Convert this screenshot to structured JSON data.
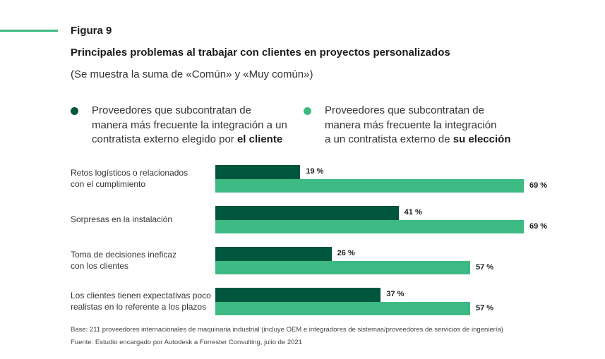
{
  "colors": {
    "accent": "#3dba83",
    "series_dark": "#00573d",
    "series_light": "#3dba83"
  },
  "figure_label": "Figura 9",
  "chart_data": {
    "type": "bar",
    "orientation": "horizontal",
    "title": "Principales problemas al trabajar con clientes en proyectos personalizados",
    "subtitle": "(Se muestra la suma de «Común» y «Muy común»)",
    "categories": [
      [
        "Retos logísticos o relacionados",
        "con el cumplimiento"
      ],
      [
        "Sorpresas en la instalación"
      ],
      [
        "Toma de decisiones ineficaz",
        "con los clientes"
      ],
      [
        "Los clientes tienen expectativas poco",
        "realistas en lo referente a los plazos"
      ]
    ],
    "series": [
      {
        "name": "Proveedores que subcontratan de manera más frecuente la integración a un contratista externo elegido por el cliente",
        "legend_lines": [
          "Proveedores que subcontratan de",
          "manera más frecuente la integración a un",
          "contratista externo elegido por "
        ],
        "legend_bold": "el cliente",
        "color": "#00573d",
        "values": [
          19,
          41,
          26,
          37
        ],
        "labels": [
          "19 %",
          "41 %",
          "26 %",
          "37 %"
        ]
      },
      {
        "name": "Proveedores que subcontratan de manera más frecuente la integración a un contratista externo de su elección",
        "legend_lines": [
          "Proveedores que subcontratan de",
          "manera más frecuente la integración",
          "a un contratista externo de "
        ],
        "legend_bold": "su elección",
        "color": "#3dba83",
        "values": [
          69,
          69,
          57,
          57
        ],
        "labels": [
          "69 %",
          "69 %",
          "57 %",
          "57 %"
        ]
      }
    ],
    "xlim": [
      0,
      100
    ],
    "unit": "%",
    "grid": false,
    "legend_position": "top"
  },
  "footnotes": [
    "Base: 211 proveedores internacionales de maquinaria industrial (incluye OEM e integradores de sistemas/proveedores de servicios de ingeniería)",
    "Fuente: Estudio encargado por Autodesk a Forrester Consulting, julio de 2021"
  ]
}
